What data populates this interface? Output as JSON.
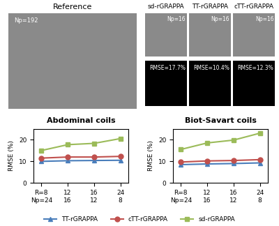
{
  "image_panels": {
    "reference": {
      "title": "Reference",
      "label": "Np=192"
    },
    "reconstructions": [
      {
        "title": "sd-rGRAPPA",
        "label": "Np=16",
        "error_label": "RMSE=17.7%"
      },
      {
        "title": "TT-rGRAPPA",
        "label": "Np=16",
        "error_label": "RMSE=10.4%"
      },
      {
        "title": "cTT-rGRAPPA",
        "label": "Np=16",
        "error_label": "RMSE=12.3%"
      }
    ]
  },
  "chart_data": [
    {
      "type": "line",
      "title": "Abdominal coils",
      "y_label": "RMSE (%)",
      "categories": [
        "R=8\nNp=24",
        "12\n16",
        "16\n12",
        "24\n8"
      ],
      "ylim": [
        0,
        25
      ],
      "yticks": [
        0,
        10,
        20
      ],
      "grid": false,
      "legend": "lower center",
      "series": [
        {
          "name": "TT-rGRAPPA",
          "color": "#4a7ebb",
          "marker": "triangle",
          "values": [
            10.0,
            10.3,
            10.4,
            10.5
          ]
        },
        {
          "name": "cTT-rGRAPPA",
          "color": "#c0504d",
          "marker": "circle",
          "values": [
            11.5,
            12.0,
            12.0,
            12.3
          ]
        },
        {
          "name": "sd-rGRAPPA",
          "color": "#9bbb59",
          "marker": "square",
          "values": [
            15.0,
            17.7,
            18.3,
            20.5
          ]
        }
      ]
    },
    {
      "type": "line",
      "title": "Biot-Savart coils",
      "y_label": "RMSE (%)",
      "categories": [
        "R=8\nNp=24",
        "12\n16",
        "16\n12",
        "24\n8"
      ],
      "ylim": [
        0,
        25
      ],
      "yticks": [
        0,
        10,
        20
      ],
      "grid": false,
      "legend": "lower center",
      "series": [
        {
          "name": "TT-rGRAPPA",
          "color": "#4a7ebb",
          "marker": "triangle",
          "values": [
            8.5,
            8.8,
            9.0,
            9.3
          ]
        },
        {
          "name": "cTT-rGRAPPA",
          "color": "#c0504d",
          "marker": "circle",
          "values": [
            9.7,
            10.2,
            10.4,
            10.8
          ]
        },
        {
          "name": "sd-rGRAPPA",
          "color": "#9bbb59",
          "marker": "square",
          "values": [
            15.5,
            18.5,
            19.8,
            23.0
          ]
        }
      ]
    }
  ]
}
